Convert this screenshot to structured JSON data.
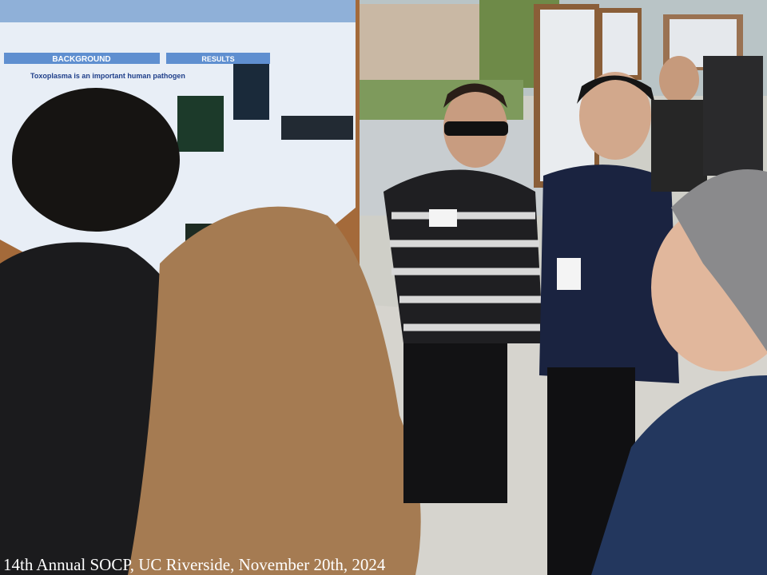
{
  "photo": {
    "poster": {
      "background_heading": "BACKGROUND",
      "results_heading": "RESULTS",
      "subheading": "Toxoplasma is an important human pathogen"
    },
    "caption": "14th Annual SOCP, UC Riverside, November 20th, 2024"
  }
}
